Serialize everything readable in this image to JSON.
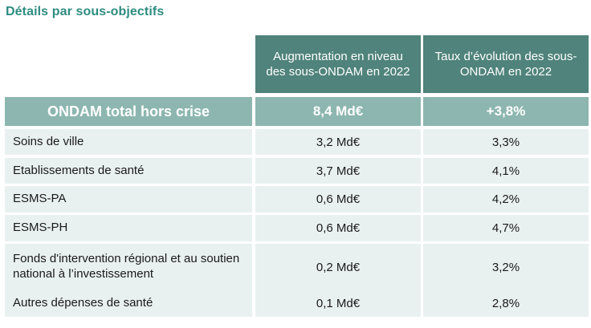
{
  "page_title": "Détails par sous-objectifs",
  "colors": {
    "header_bg": "#4F837B",
    "total_bg": "#8DB6B0",
    "row_bg": "#E9F1F0",
    "title_text": "#2E8C80",
    "header_text": "#FFFFFF",
    "body_text": "#1A1A1A"
  },
  "table": {
    "columns": [
      {
        "label": ""
      },
      {
        "label": "Augmentation en niveau des sous-ONDAM en 2022"
      },
      {
        "label": "Taux d’évolution des sous-ONDAM en 2022"
      }
    ],
    "total_row": {
      "label": "ONDAM total hors crise",
      "amount": "8,4 Md€",
      "rate": "+3,8%"
    },
    "rows": [
      {
        "label": "Soins de ville",
        "amount": "3,2 Md€",
        "rate": "3,3%"
      },
      {
        "label": "Etablissements de santé",
        "amount": "3,7 Md€",
        "rate": "4,1%"
      },
      {
        "label": "ESMS-PA",
        "amount": "0,6 Md€",
        "rate": "4,2%"
      },
      {
        "label": "ESMS-PH",
        "amount": "0,6 Md€",
        "rate": "4,7%"
      },
      {
        "label": "Fonds d'intervention régional et au soutien national à l’investissement",
        "amount": "0,2 Md€",
        "rate": "3,2%"
      },
      {
        "label": "Autres dépenses de santé",
        "amount": "0,1 Md€",
        "rate": "2,8%"
      }
    ]
  }
}
